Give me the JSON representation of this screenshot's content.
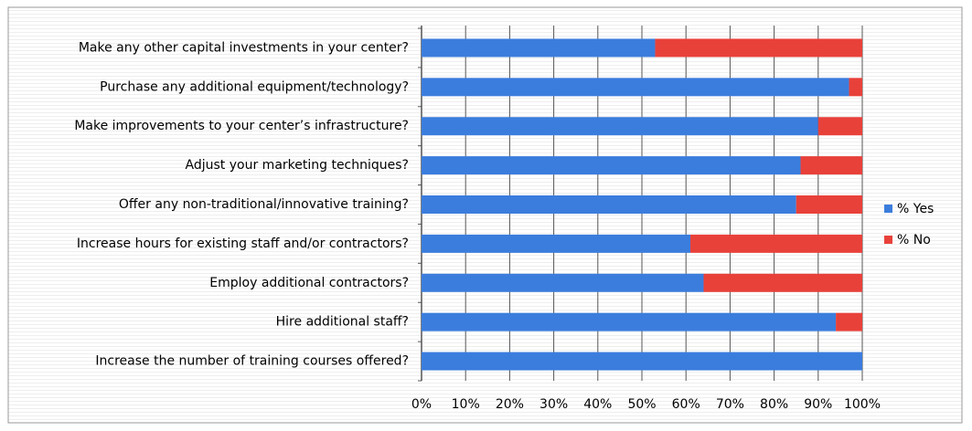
{
  "chart_data": {
    "type": "stacked-bar-horizontal",
    "categories": [
      "Make any other capital investments in your center?",
      "Purchase any additional equipment/technology?",
      "Make improvements to your center’s infrastructure?",
      "Adjust your marketing techniques?",
      "Offer any non-traditional/innovative training?",
      "Increase hours for existing staff and/or contractors?",
      "Employ additional contractors?",
      "Hire additional staff?",
      "Increase the number of training courses offered?"
    ],
    "series": [
      {
        "name": "% Yes",
        "color": "#3b7ddd",
        "values": [
          53,
          97,
          90,
          86,
          85,
          61,
          64,
          94,
          100
        ]
      },
      {
        "name": "% No",
        "color": "#e8413a",
        "values": [
          47,
          3,
          10,
          14,
          15,
          39,
          36,
          6,
          0
        ]
      }
    ],
    "xlim": [
      0,
      100
    ],
    "xticks": [
      {
        "value": 0,
        "label": "0%"
      },
      {
        "value": 10,
        "label": "10%"
      },
      {
        "value": 20,
        "label": "20%"
      },
      {
        "value": 30,
        "label": "30%"
      },
      {
        "value": 40,
        "label": "40%"
      },
      {
        "value": 50,
        "label": "50%"
      },
      {
        "value": 60,
        "label": "60%"
      },
      {
        "value": 70,
        "label": "70%"
      },
      {
        "value": 80,
        "label": "80%"
      },
      {
        "value": 90,
        "label": "90%"
      },
      {
        "value": 100,
        "label": "100%"
      }
    ],
    "grid": true,
    "legend": "right"
  }
}
